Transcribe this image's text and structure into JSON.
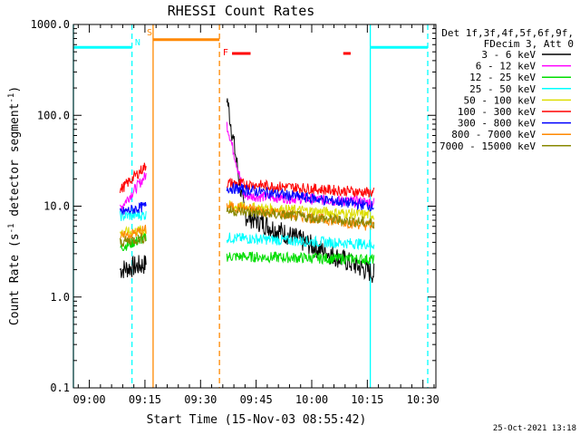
{
  "chart_data": {
    "type": "line",
    "title": "RHESSI Count Rates",
    "xlabel": "Start Time (15-Nov-03 08:55:42)",
    "ylabel_parts": [
      "Count Rate (s",
      "-1",
      " detector segment",
      "-1",
      ")"
    ],
    "y_log": true,
    "ylim": [
      0.1,
      1000
    ],
    "xlim_minutes_after_0900": [
      -4.3,
      33.5
    ],
    "x_ticks": [
      {
        "label": "09:00",
        "min": 0
      },
      {
        "label": "09:15",
        "min": 15
      },
      {
        "label": "09:30",
        "min": 30
      },
      {
        "label": "09:45",
        "min": 45
      },
      {
        "label": "10:00",
        "min": 60
      },
      {
        "label": "10:15",
        "min": 75
      },
      {
        "label": "10:30",
        "min": 90
      }
    ],
    "y_ticks": [
      {
        "label": "0.1",
        "v": 0.1
      },
      {
        "label": "1.0",
        "v": 1
      },
      {
        "label": "10.0",
        "v": 10
      },
      {
        "label": "100.0",
        "v": 100
      },
      {
        "label": "1000.0",
        "v": 1000
      }
    ],
    "legend_header": [
      "Det 1f,3f,4f,5f,6f,9f,",
      "FDecim 3, Att 0"
    ],
    "legend_position": "right",
    "series": [
      {
        "name": "3 - 6 keV",
        "color": "#000000",
        "seg1": {
          "start": 2.0,
          "end": 2.3
        },
        "seg2": {
          "start": 160,
          "end": 1.8
        }
      },
      {
        "name": "6 - 12 keV",
        "color": "#ff00ff",
        "seg1": {
          "start": 9.5,
          "end": 22
        },
        "seg2": {
          "start": 80,
          "end": 11
        }
      },
      {
        "name": "12 - 25 keV",
        "color": "#00dd00",
        "seg1": {
          "start": 3.5,
          "end": 4.5
        },
        "seg2": {
          "start": 2.8,
          "end": 2.6
        }
      },
      {
        "name": "25 - 50 keV",
        "color": "#00ffff",
        "seg1": {
          "start": 7.8,
          "end": 8.0
        },
        "seg2": {
          "start": 4.5,
          "end": 3.8
        }
      },
      {
        "name": "50 - 100 keV",
        "color": "#dddd00",
        "seg1": {
          "start": 5.0,
          "end": 5.5
        },
        "seg2": {
          "start": 10,
          "end": 8
        }
      },
      {
        "name": "100 - 300 keV",
        "color": "#ff0000",
        "seg1": {
          "start": 15,
          "end": 28
        },
        "seg2": {
          "start": 18,
          "end": 14
        }
      },
      {
        "name": "300 - 800 keV",
        "color": "#0000ff",
        "seg1": {
          "start": 8.5,
          "end": 10
        },
        "seg2": {
          "start": 16,
          "end": 10
        }
      },
      {
        "name": "800 - 7000 keV",
        "color": "#ff8800",
        "seg1": {
          "start": 4.5,
          "end": 5.5
        },
        "seg2": {
          "start": 10,
          "end": 6
        }
      },
      {
        "name": "7000 - 15000 keV",
        "color": "#888800",
        "seg1": {
          "start": 4.0,
          "end": 4.5
        },
        "seg2": {
          "start": 9,
          "end": 6.5
        }
      }
    ],
    "data_segments_minutes": [
      [
        8.3,
        15.3
      ],
      [
        37.1,
        76.8
      ]
    ],
    "annotations": [
      {
        "text": "N",
        "color": "#00ffff",
        "x_min": 12.3,
        "y": 650
      },
      {
        "text": "S",
        "color": "#ff8800",
        "x_min": 15.5,
        "y": 830
      },
      {
        "text": "F",
        "color": "#ff0000",
        "x_min": 36.0,
        "y": 500
      }
    ],
    "vertical_lines": [
      {
        "x_min": -4.3,
        "color": "#00ffff",
        "style": "solid"
      },
      {
        "x_min": 11.5,
        "color": "#00ffff",
        "style": "dashed"
      },
      {
        "x_min": 17.2,
        "color": "#ff8800",
        "style": "solid"
      },
      {
        "x_min": 35.1,
        "color": "#ff8800",
        "style": "dashed"
      },
      {
        "x_min": 75.8,
        "color": "#00ffff",
        "style": "solid"
      },
      {
        "x_min": 91.3,
        "color": "#00ffff",
        "style": "dashed"
      }
    ],
    "horizontal_bars": [
      {
        "from": -4.3,
        "to": 11.5,
        "y": 560,
        "color": "#00ffff"
      },
      {
        "from": 17.2,
        "to": 35.1,
        "y": 680,
        "color": "#ff8800"
      },
      {
        "from": 38.5,
        "to": 43.5,
        "y": 480,
        "color": "#ff0000"
      },
      {
        "from": 68.5,
        "to": 70.5,
        "y": 480,
        "color": "#ff0000"
      },
      {
        "from": 75.8,
        "to": 91.3,
        "y": 560,
        "color": "#00ffff"
      }
    ],
    "footer_date": "25-Oct-2021 13:18"
  }
}
